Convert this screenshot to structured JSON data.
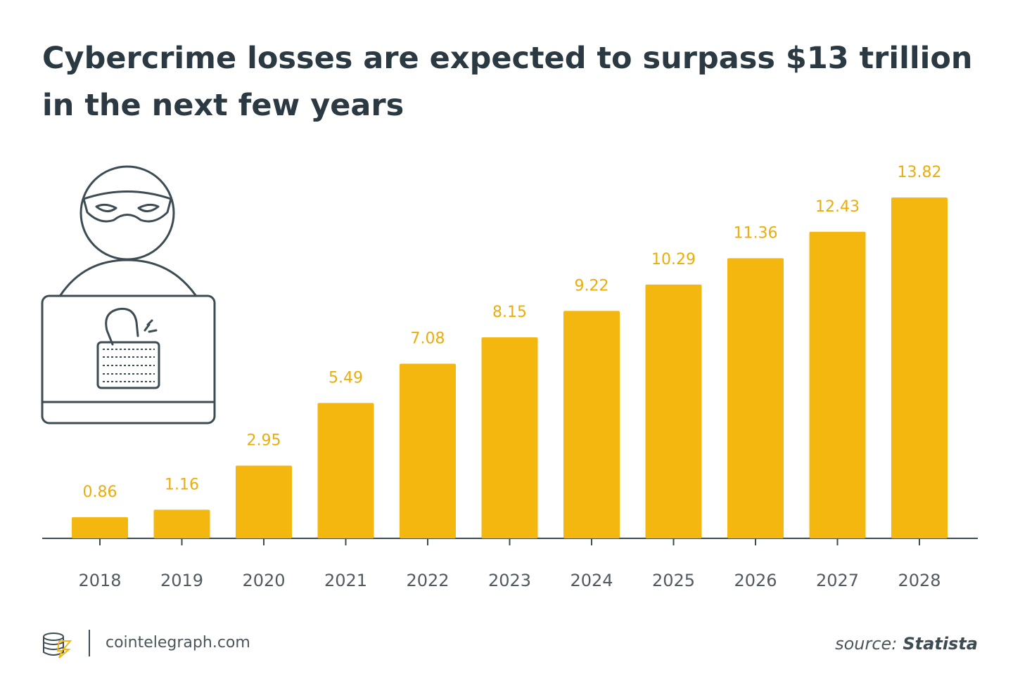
{
  "chart_data": {
    "type": "bar",
    "title": [
      "Cybercrime losses are expected to surpass $13 trillion",
      "in the next few years"
    ],
    "categories": [
      "2018",
      "2019",
      "2020",
      "2021",
      "2022",
      "2023",
      "2024",
      "2025",
      "2026",
      "2027",
      "2028"
    ],
    "values": [
      0.86,
      1.16,
      2.95,
      5.49,
      7.08,
      8.15,
      9.22,
      10.29,
      11.36,
      12.43,
      13.82
    ],
    "color": "#f4b70f",
    "label_color": "#eaad0c",
    "brand": "cointelegraph.com",
    "source_label": "source:",
    "source": "Statista"
  }
}
